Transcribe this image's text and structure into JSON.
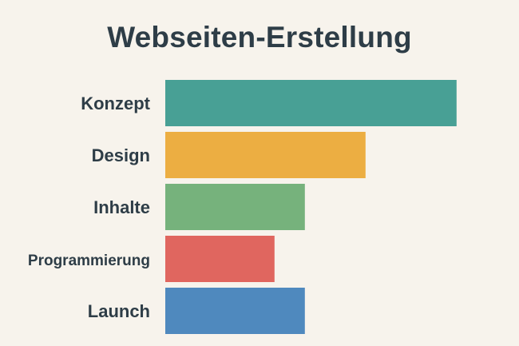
{
  "chart_data": {
    "type": "bar",
    "orientation": "horizontal",
    "title": "Webseiten-Erstellung",
    "xlabel": "",
    "ylabel": "",
    "categories": [
      "Konzept",
      "Design",
      "Inhalte",
      "Programmierung",
      "Launch"
    ],
    "values": [
      96,
      66,
      46,
      36,
      46
    ],
    "xlim": [
      0,
      100
    ],
    "grid": false,
    "legend": "none",
    "colors": [
      "#48a095",
      "#ecae42",
      "#76b27c",
      "#e0665f",
      "#4f89be"
    ]
  }
}
